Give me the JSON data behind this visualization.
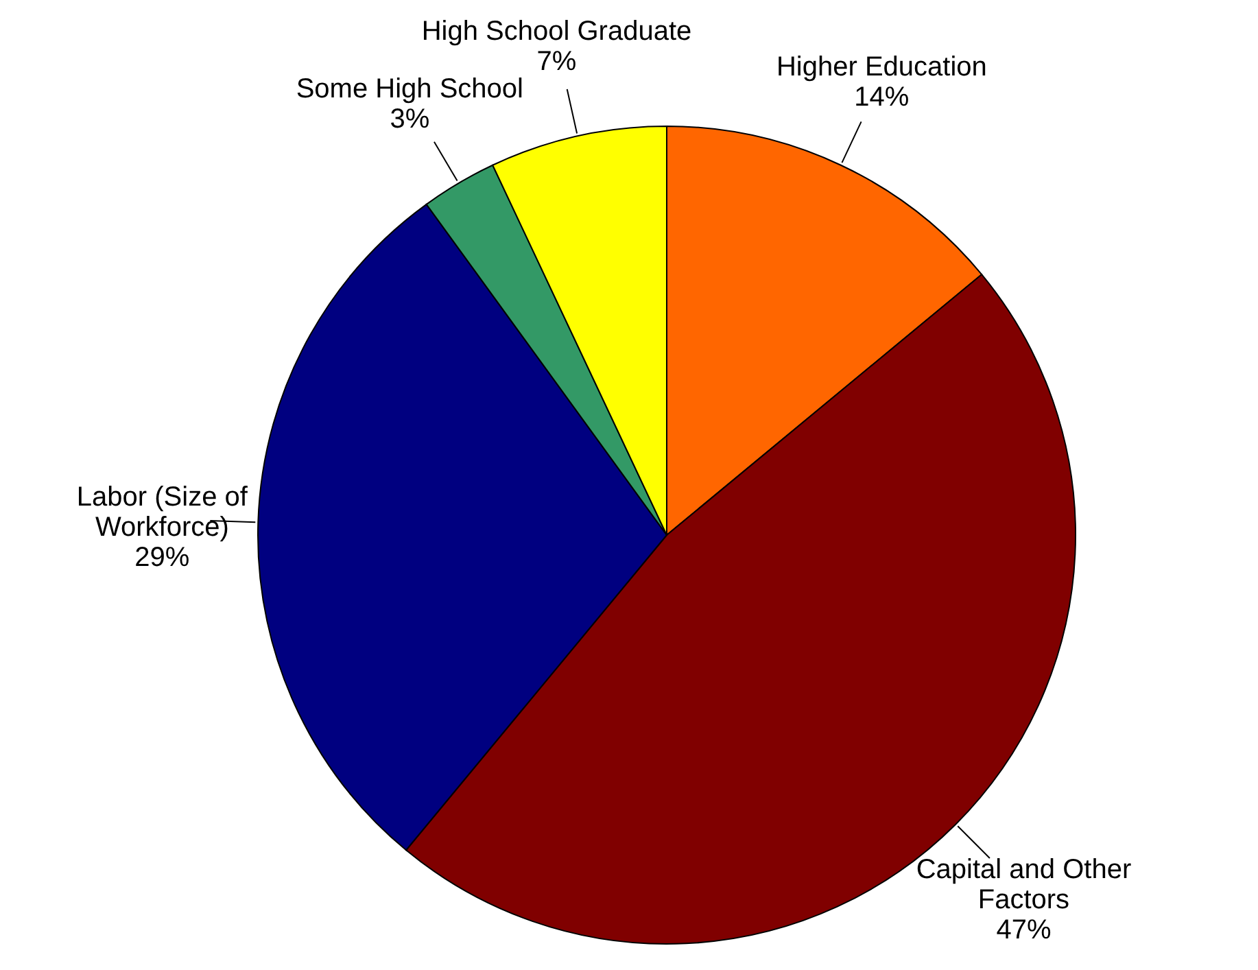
{
  "chart_data": {
    "type": "pie",
    "categories": [
      "Higher Education",
      "Capital and Other Factors",
      "Labor (Size of Workforce)",
      "Some High School",
      "High School Graduate"
    ],
    "values": [
      14,
      47,
      29,
      3,
      7
    ],
    "colors": [
      "#ff6600",
      "#800000",
      "#000080",
      "#339966",
      "#ffff00"
    ],
    "value_labels": [
      "14%",
      "47%",
      "29%",
      "3%",
      "7%"
    ]
  }
}
